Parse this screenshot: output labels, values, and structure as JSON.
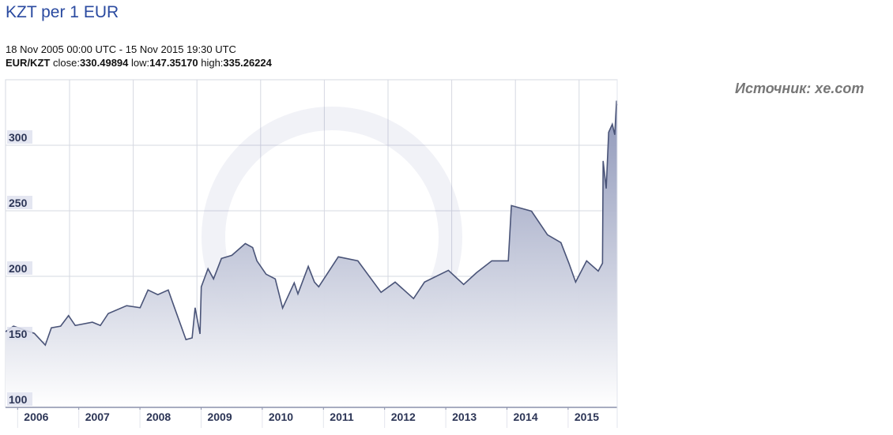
{
  "header": {
    "title": "KZT per 1 EUR",
    "range": "18 Nov 2005 00:00 UTC - 15 Nov 2015 19:30 UTC",
    "pair": "EUR/KZT",
    "close_label": "close:",
    "close": "330.49894",
    "low_label": "low:",
    "low": "147.35170",
    "high_label": "high:",
    "high": "335.26224"
  },
  "source": "Источник: xe.com",
  "colors": {
    "line": "#4a5478",
    "fill_top": "#8891b5",
    "grid": "#d6d8e2",
    "title": "#2a4aa0"
  },
  "chart_data": {
    "type": "area",
    "title": "KZT per 1 EUR",
    "xlabel": "",
    "ylabel": "",
    "xlim": [
      2005.88,
      2015.88
    ],
    "ylim": [
      100,
      350
    ],
    "yticks": [
      100,
      150,
      200,
      250,
      300
    ],
    "xticks": [
      "2006",
      "2007",
      "2008",
      "2009",
      "2010",
      "2011",
      "2012",
      "2013",
      "2014",
      "2015"
    ],
    "grid": true,
    "legend": "none",
    "x": [
      2005.88,
      2006.01,
      2006.35,
      2006.53,
      2006.63,
      2006.78,
      2006.91,
      2007.02,
      2007.3,
      2007.43,
      2007.56,
      2007.86,
      2008.08,
      2008.21,
      2008.37,
      2008.54,
      2008.63,
      2008.83,
      2008.93,
      2008.98,
      2009.06,
      2009.08,
      2009.19,
      2009.28,
      2009.41,
      2009.58,
      2009.8,
      2009.92,
      2009.99,
      2010.14,
      2010.29,
      2010.41,
      2010.6,
      2010.66,
      2010.83,
      2010.93,
      2011.0,
      2011.32,
      2011.64,
      2012.02,
      2012.25,
      2012.55,
      2012.73,
      2013.12,
      2013.37,
      2013.58,
      2013.83,
      2014.1,
      2014.15,
      2014.48,
      2014.74,
      2014.96,
      2015.09,
      2015.2,
      2015.38,
      2015.57,
      2015.64,
      2015.65,
      2015.7,
      2015.74,
      2015.8,
      2015.84,
      2015.87,
      2015.88
    ],
    "y": [
      157.7,
      162,
      156.5,
      147.5,
      160.7,
      162,
      170,
      162.5,
      165,
      162.5,
      171.6,
      177.6,
      176,
      189.6,
      186,
      189.6,
      177.6,
      151.7,
      153,
      176,
      156,
      192,
      205.8,
      198,
      213.6,
      216,
      225,
      222,
      211.8,
      201.6,
      198,
      175.8,
      195,
      186.6,
      207.6,
      195.6,
      192,
      214.9,
      211.8,
      187.8,
      195.6,
      183,
      195.6,
      204.6,
      193.8,
      202.8,
      211.8,
      211.8,
      254,
      249.7,
      231.7,
      225.7,
      210,
      195.6,
      211.8,
      204,
      210,
      288,
      267,
      309.9,
      316,
      308,
      334,
      330.5
    ]
  }
}
